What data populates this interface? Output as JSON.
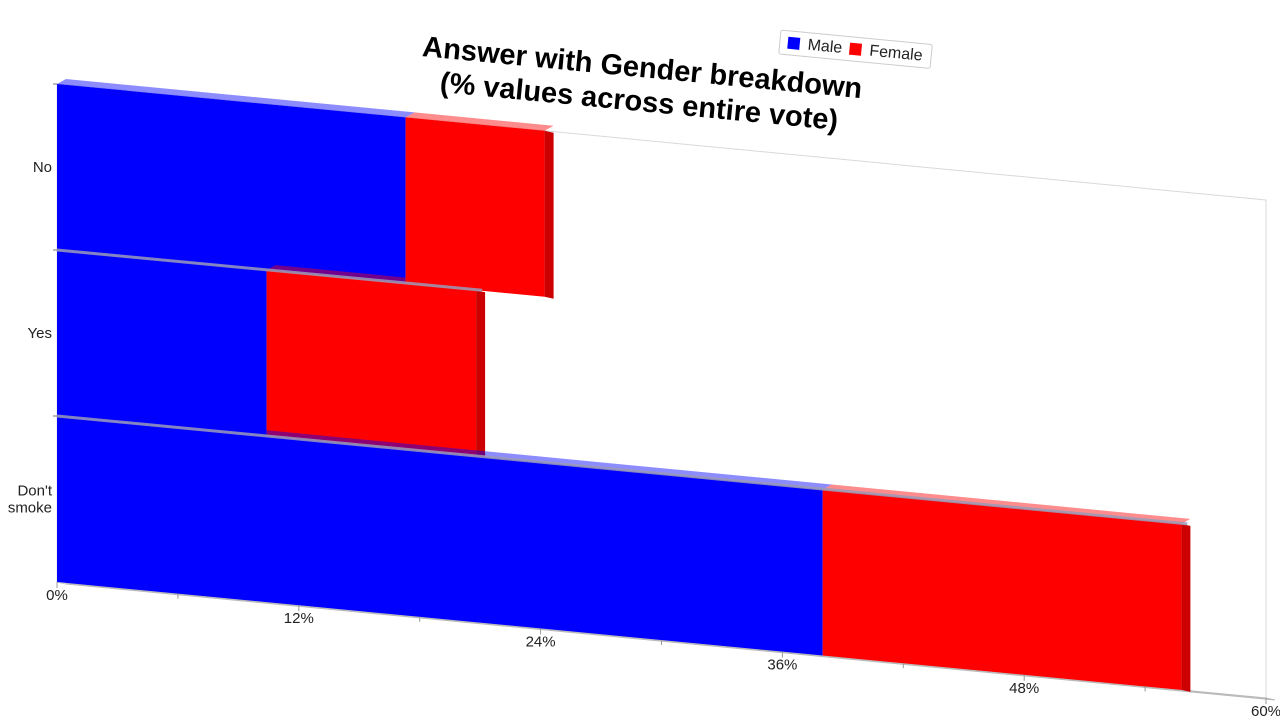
{
  "chart_data": {
    "type": "bar",
    "orientation": "horizontal",
    "stacked": true,
    "three_d": true,
    "title_lines": [
      "Answer with Gender breakdown",
      "(% values across entire vote)"
    ],
    "categories": [
      "No",
      "Yes",
      "Don't\nsmoke"
    ],
    "series": [
      {
        "name": "Male",
        "color": "#0000ff",
        "side_color": "#0000cc",
        "values": [
          17.3,
          10.4,
          38.0
        ]
      },
      {
        "name": "Female",
        "color": "#ff0000",
        "side_color": "#cc0000",
        "values": [
          6.9,
          10.4,
          17.8
        ]
      }
    ],
    "xaxis": {
      "min": 0,
      "max": 60,
      "ticks": [
        0,
        12,
        24,
        36,
        48,
        60
      ],
      "tick_labels": [
        "0%",
        "12%",
        "24%",
        "36%",
        "48%",
        "60%"
      ]
    },
    "legend": {
      "placement": "top-right",
      "entries": [
        "Male",
        "Female"
      ]
    },
    "grid": false
  }
}
